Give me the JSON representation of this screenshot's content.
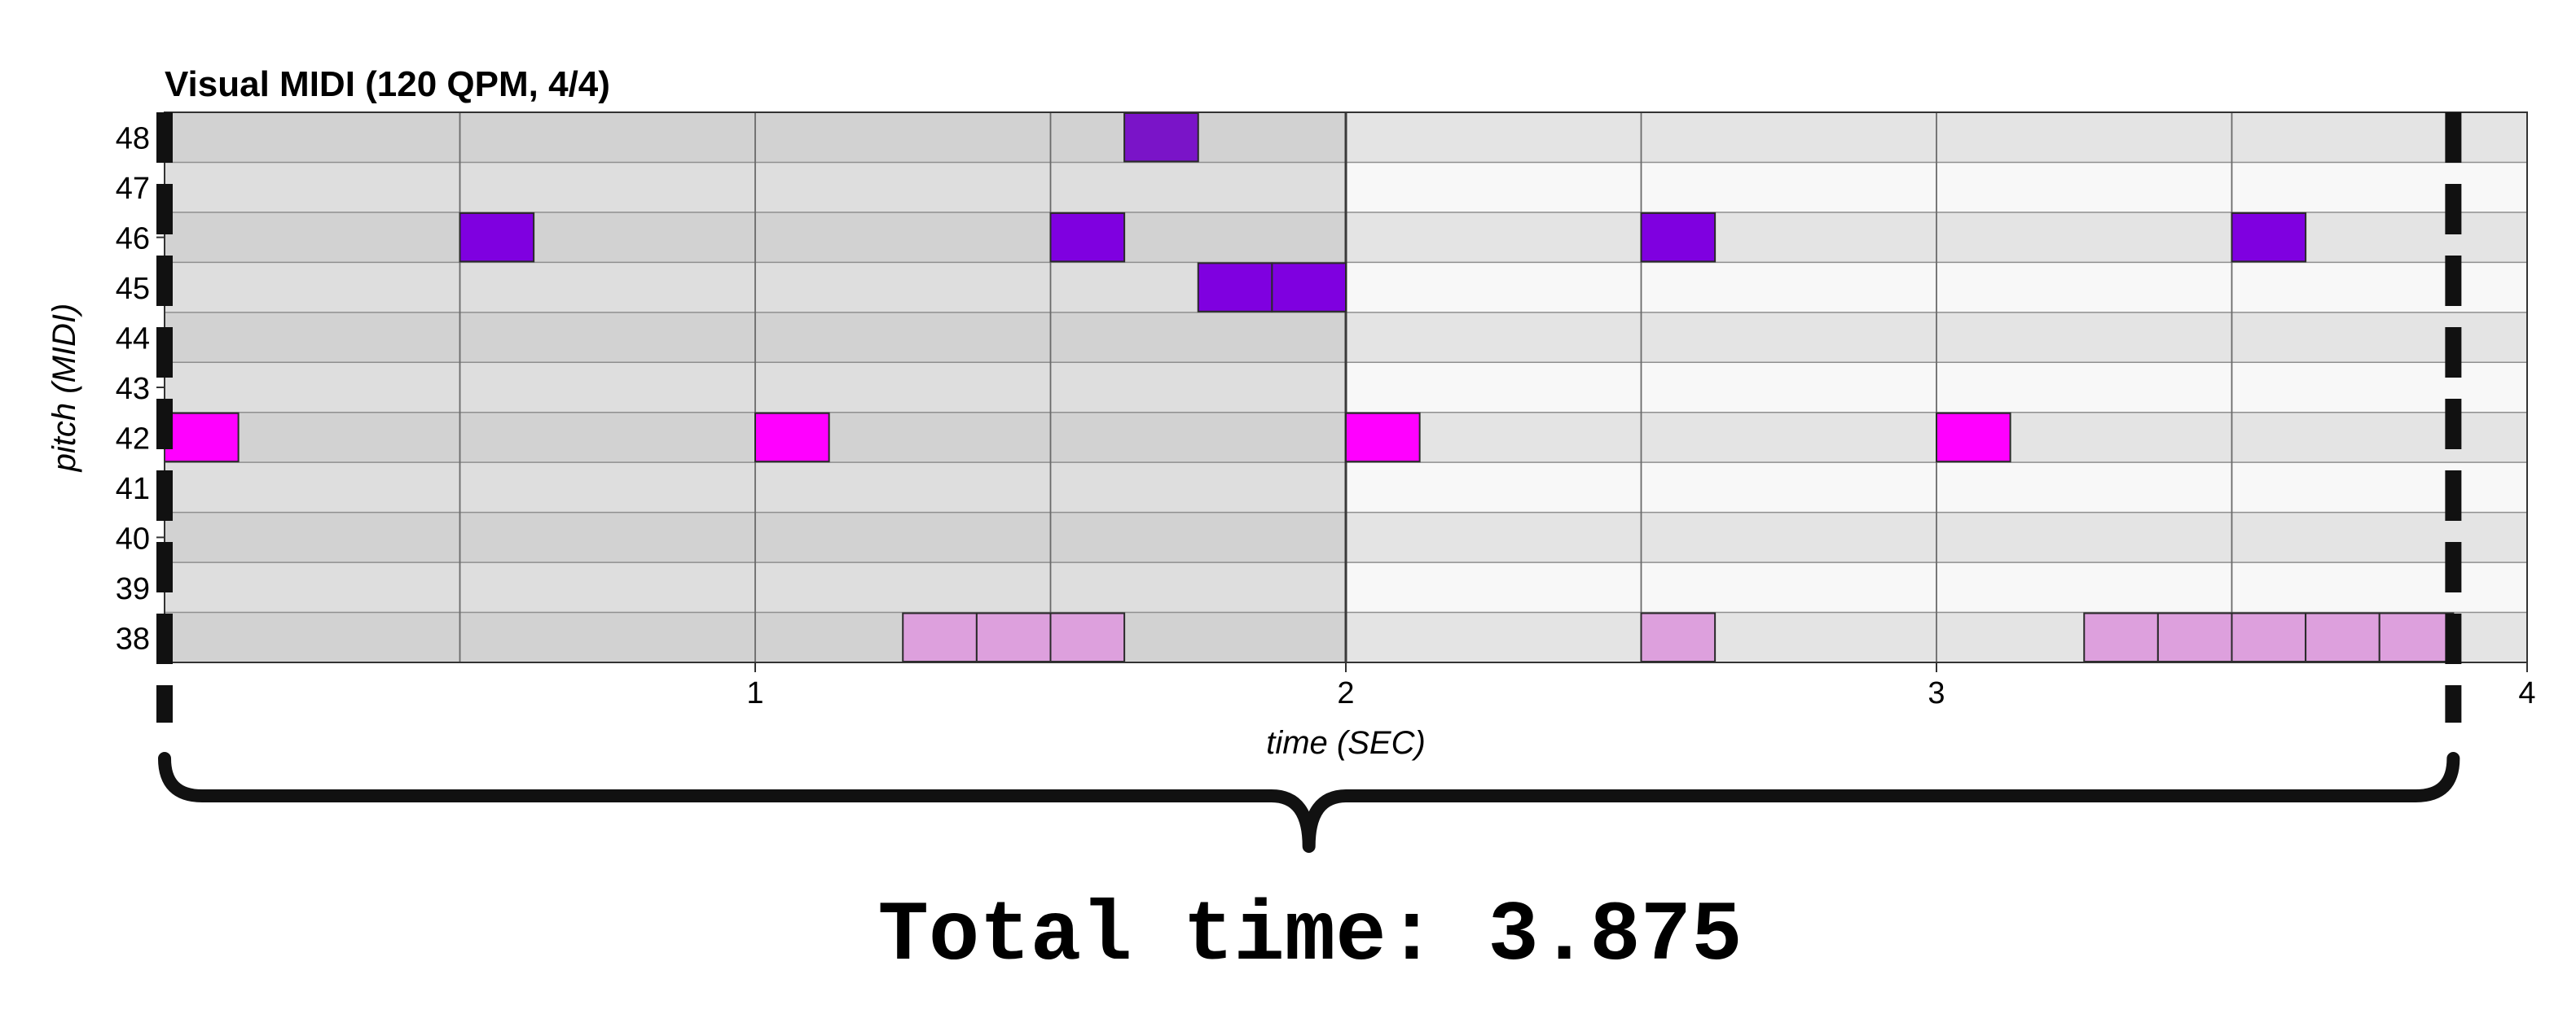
{
  "chart_data": {
    "type": "piano-roll",
    "title": "Visual MIDI (120 QPM, 4/4)",
    "xlabel": "time (SEC)",
    "ylabel": "pitch (MIDI)",
    "xlim": [
      0,
      4
    ],
    "pitch_range": [
      38,
      48
    ],
    "x_ticks": [
      "1",
      "2",
      "3",
      "4"
    ],
    "pitch_ticks": [
      "38",
      "39",
      "40",
      "41",
      "42",
      "43",
      "44",
      "45",
      "46",
      "47",
      "48"
    ],
    "beat_interval": 0.5,
    "bar_length": 2.0,
    "notes": [
      {
        "pitch": 42,
        "start": 0.0,
        "end": 0.125,
        "color": "#ff00ff"
      },
      {
        "pitch": 42,
        "start": 1.0,
        "end": 1.125,
        "color": "#ff00ff"
      },
      {
        "pitch": 42,
        "start": 2.0,
        "end": 2.125,
        "color": "#ff00ff"
      },
      {
        "pitch": 42,
        "start": 3.0,
        "end": 3.125,
        "color": "#ff00ff"
      },
      {
        "pitch": 46,
        "start": 0.5,
        "end": 0.625,
        "color": "#7f00e0"
      },
      {
        "pitch": 46,
        "start": 1.5,
        "end": 1.625,
        "color": "#7f00e0"
      },
      {
        "pitch": 46,
        "start": 2.5,
        "end": 2.625,
        "color": "#7f00e0"
      },
      {
        "pitch": 46,
        "start": 3.5,
        "end": 3.625,
        "color": "#7f00e0"
      },
      {
        "pitch": 48,
        "start": 1.625,
        "end": 1.75,
        "color": "#7a14c8"
      },
      {
        "pitch": 45,
        "start": 1.75,
        "end": 1.875,
        "color": "#7f00e0"
      },
      {
        "pitch": 45,
        "start": 1.875,
        "end": 2.0,
        "color": "#7f00e0"
      },
      {
        "pitch": 38,
        "start": 1.25,
        "end": 1.375,
        "color": "#dda0dd"
      },
      {
        "pitch": 38,
        "start": 1.375,
        "end": 1.5,
        "color": "#dda0dd"
      },
      {
        "pitch": 38,
        "start": 1.5,
        "end": 1.625,
        "color": "#dda0dd"
      },
      {
        "pitch": 38,
        "start": 2.5,
        "end": 2.625,
        "color": "#dda0dd"
      },
      {
        "pitch": 38,
        "start": 3.25,
        "end": 3.375,
        "color": "#dda0dd"
      },
      {
        "pitch": 38,
        "start": 3.375,
        "end": 3.5,
        "color": "#dda0dd"
      },
      {
        "pitch": 38,
        "start": 3.5,
        "end": 3.625,
        "color": "#dda0dd"
      },
      {
        "pitch": 38,
        "start": 3.625,
        "end": 3.75,
        "color": "#dda0dd"
      },
      {
        "pitch": 38,
        "start": 3.75,
        "end": 3.875,
        "color": "#dda0dd"
      }
    ],
    "highlighted_bar": [
      0,
      2
    ],
    "total_time_markers": [
      0,
      3.875
    ],
    "annotation": "Total time: 3.875",
    "colors": {
      "bar_highlight_even_row": "#d2d2d2",
      "bar_highlight_odd_row": "#dedede",
      "even_row": "#e4e4e4",
      "odd_row": "#f8f8f8",
      "marker": "#111111"
    }
  }
}
